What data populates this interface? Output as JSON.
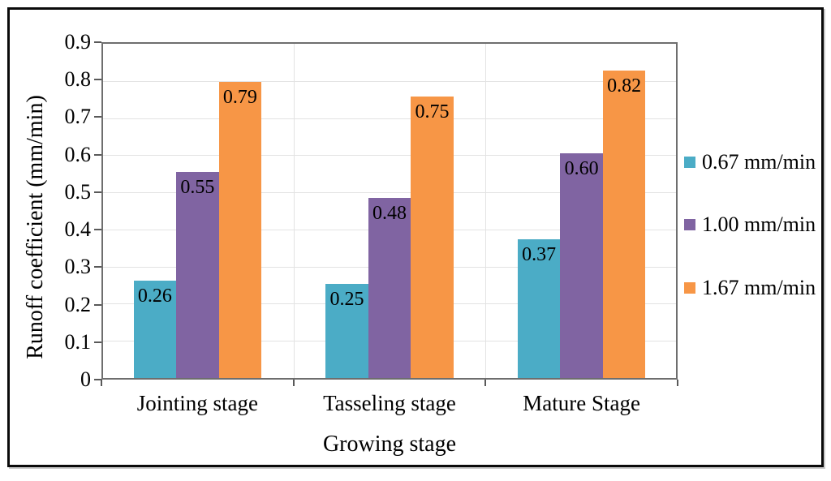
{
  "figure": {
    "background": "#FFFFFF",
    "border_color": "#000000"
  },
  "colors": {
    "axis": "#595959",
    "plot_border": "#6E6E6E",
    "gridline": "#E3E3E3",
    "label_text": "#000000"
  },
  "chart_data": {
    "type": "bar",
    "title": "",
    "categories": [
      "Jointing stage",
      "Tasseling stage",
      "Mature Stage"
    ],
    "series": [
      {
        "name": "0.67 mm/min",
        "color": "#4BACC6",
        "values": [
          0.26,
          0.25,
          0.37
        ]
      },
      {
        "name": "1.00 mm/min",
        "color": "#8064A2",
        "values": [
          0.55,
          0.48,
          0.6
        ]
      },
      {
        "name": "1.67 mm/min",
        "color": "#F79646",
        "values": [
          0.79,
          0.75,
          0.82
        ]
      }
    ],
    "xlabel": "Growing stage",
    "ylabel": "Runoff coefficient (mm/min)",
    "ylim": [
      0,
      0.9
    ],
    "ytick_labels": [
      "0.9",
      "0.8",
      "0.7",
      "0.6",
      "0.5",
      "0.4",
      "0.3",
      "0.2",
      "0.1",
      "0"
    ],
    "grid": true,
    "legend_position": "right-outside",
    "bar_value_labels": true,
    "value_label_decimals": 2
  }
}
